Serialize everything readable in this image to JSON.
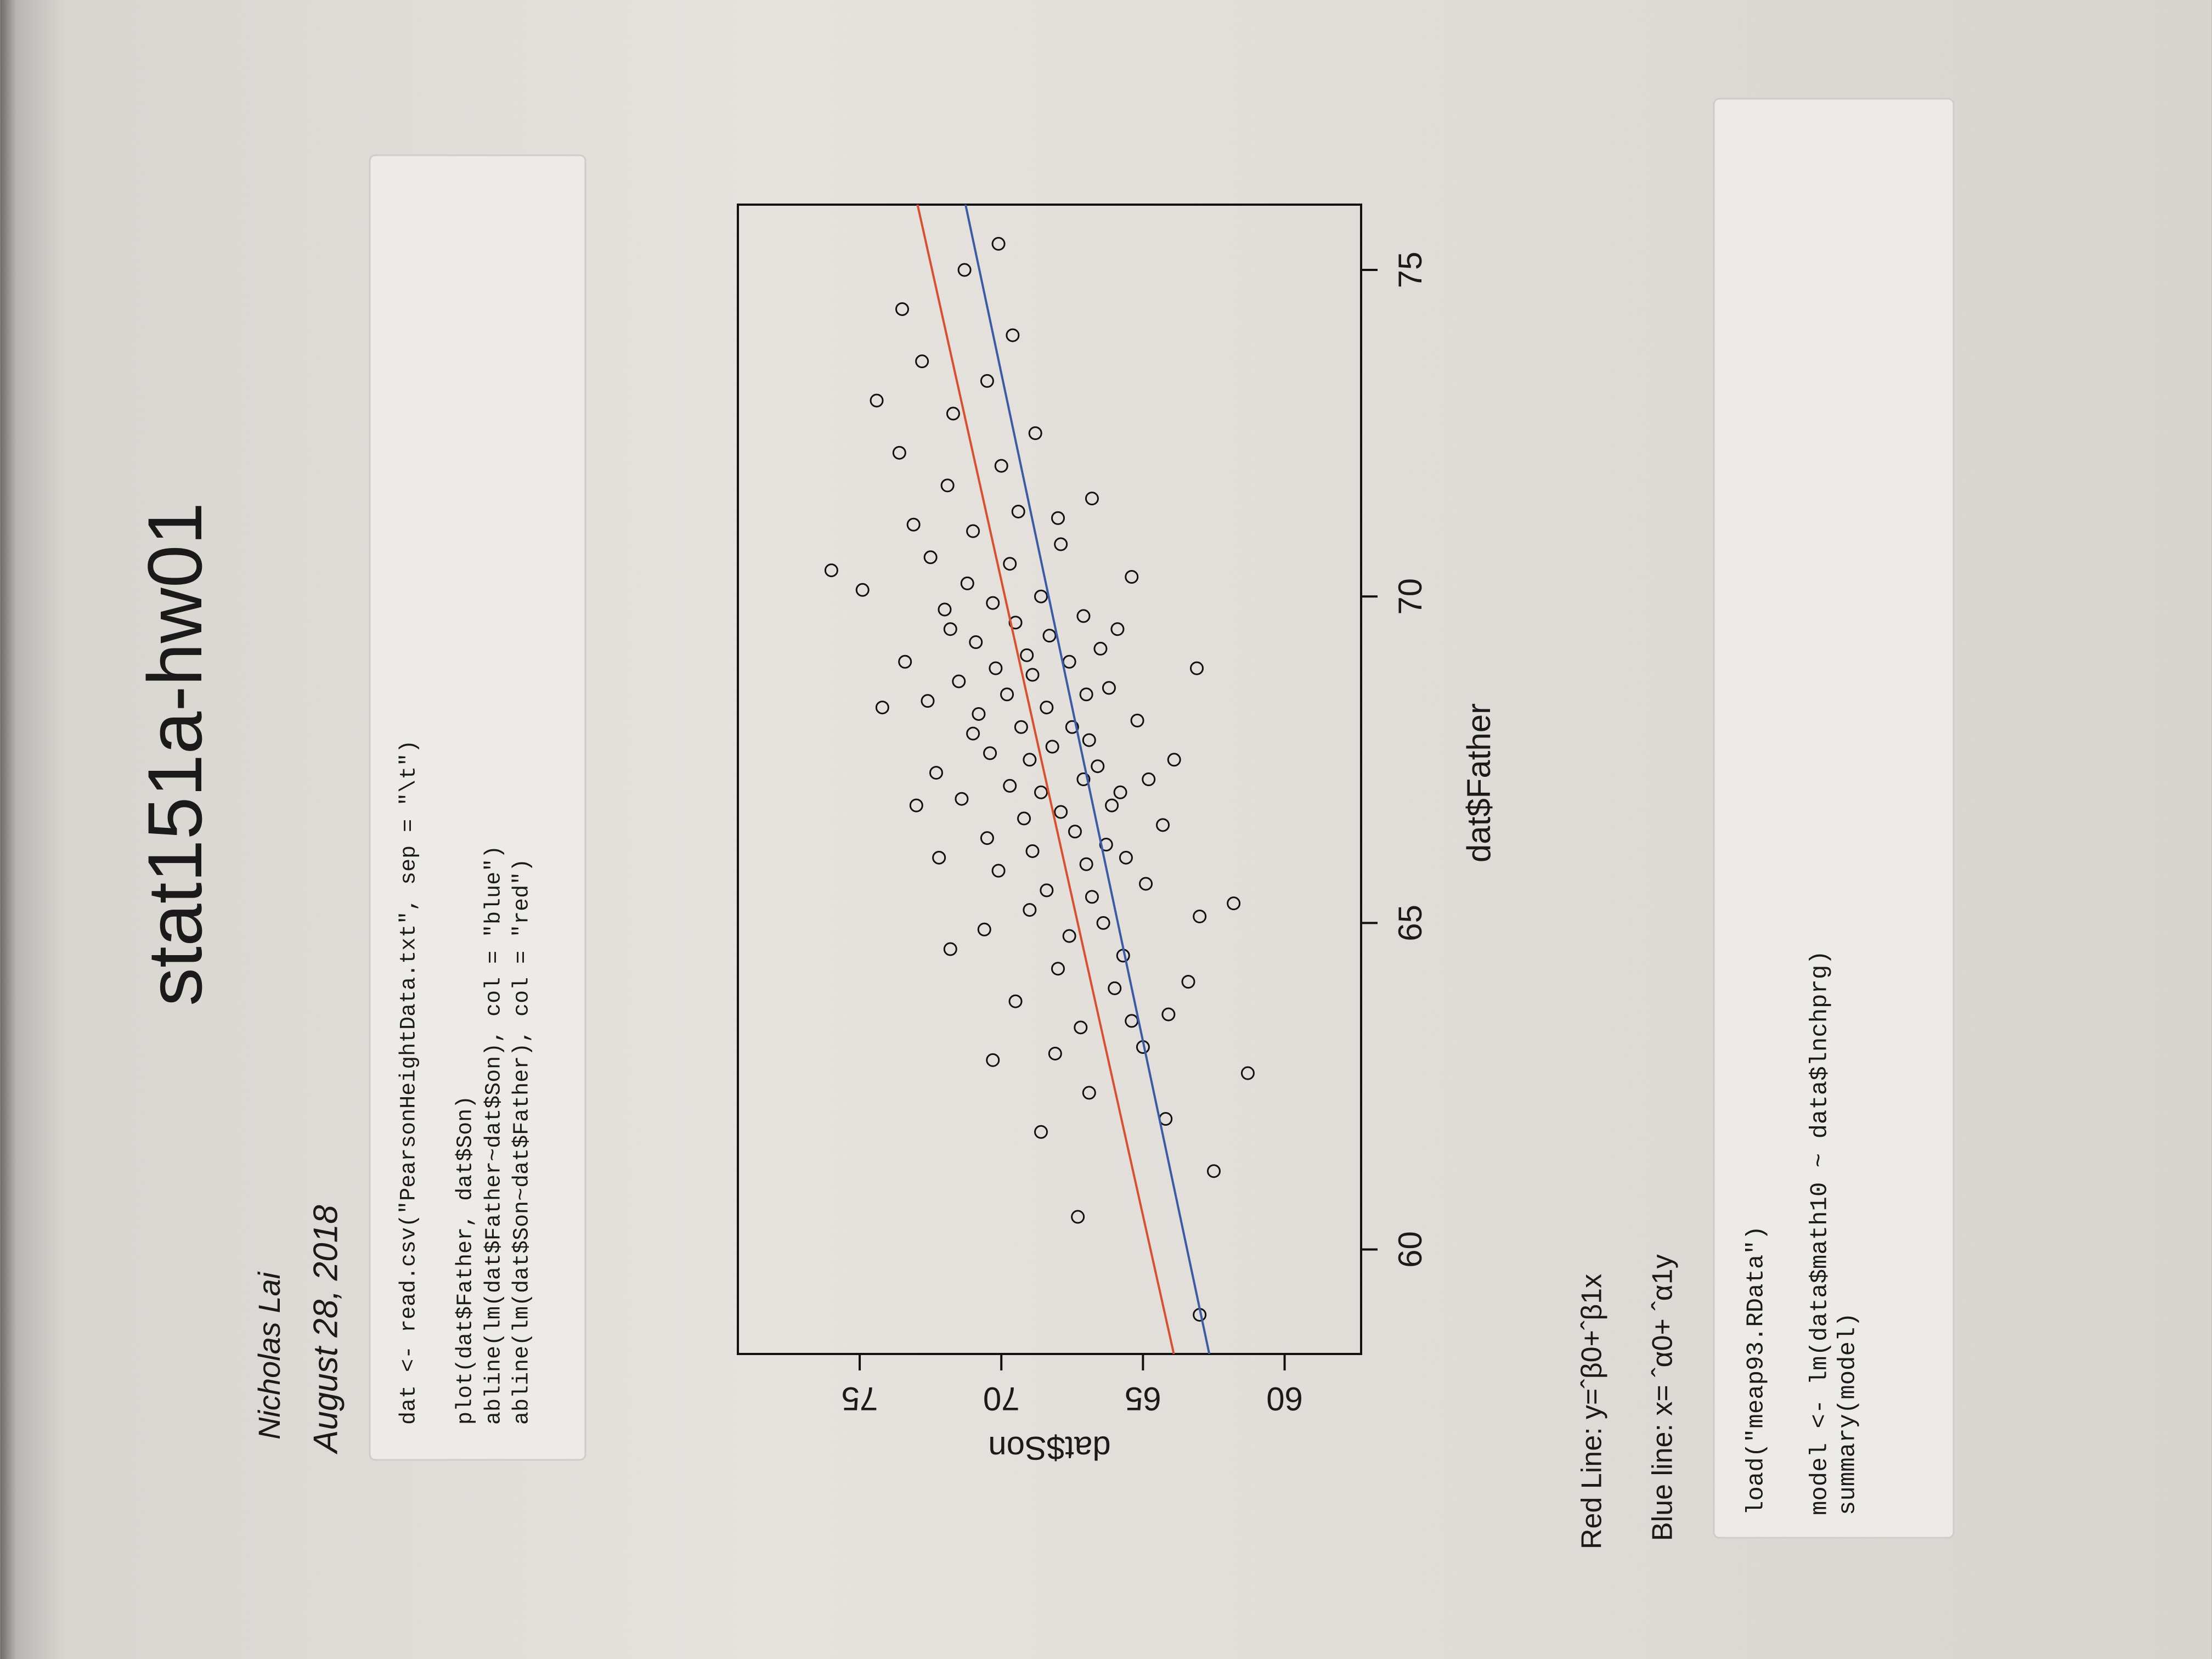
{
  "header": {
    "title": "stat151a-hw01",
    "author": "Nicholas Lai",
    "date": "August 28, 2018"
  },
  "code_1": {
    "lines": [
      "dat <- read.csv(\"PearsonHeightData.txt\", sep = \"\\t\")",
      "plot(dat$Father, dat$Son)",
      "abline(lm(dat$Father~dat$Son), col = \"blue\")",
      "abline(lm(dat$Son~dat$Father), col = \"red\")"
    ]
  },
  "chart_data": {
    "type": "scatter",
    "xlabel": "dat$Father",
    "ylabel": "dat$Son",
    "color": "#111111",
    "x": [
      59.0,
      60.5,
      61.2,
      61.8,
      62.0,
      62.4,
      62.7,
      63.0,
      63.1,
      63.4,
      63.6,
      63.8,
      64.0,
      64.1,
      64.3,
      64.5,
      64.6,
      64.8,
      65.0,
      65.1,
      65.2,
      65.4,
      65.5,
      65.6,
      65.8,
      65.9,
      66.0,
      66.1,
      66.2,
      66.3,
      66.4,
      66.5,
      66.6,
      66.7,
      66.8,
      66.9,
      67.0,
      67.0,
      67.1,
      67.2,
      67.3,
      67.4,
      67.5,
      67.5,
      67.6,
      67.7,
      67.8,
      67.9,
      68.0,
      68.0,
      68.1,
      68.2,
      68.3,
      68.4,
      68.5,
      68.5,
      68.6,
      68.7,
      68.8,
      68.9,
      69.0,
      69.0,
      69.1,
      69.2,
      69.3,
      69.4,
      69.5,
      69.6,
      69.7,
      69.8,
      69.9,
      70.0,
      70.1,
      70.2,
      70.3,
      70.5,
      70.6,
      70.8,
      71.0,
      71.1,
      71.3,
      71.5,
      71.7,
      72.0,
      72.2,
      72.5,
      72.8,
      73.0,
      73.3,
      73.6,
      74.0,
      74.4,
      75.0,
      75.4,
      63.5,
      64.9,
      66.0,
      67.2,
      68.3,
      69.5,
      70.4,
      71.2,
      65.3,
      66.8,
      68.9,
      62.9
    ],
    "values": [
      63.0,
      67.3,
      62.5,
      68.6,
      64.2,
      66.9,
      61.3,
      68.1,
      65.0,
      67.2,
      64.1,
      69.5,
      66.0,
      63.4,
      68.0,
      65.7,
      71.8,
      67.6,
      66.4,
      63.0,
      69.0,
      66.8,
      68.4,
      64.9,
      70.1,
      67.0,
      65.6,
      68.9,
      66.3,
      70.5,
      67.4,
      64.3,
      69.2,
      67.9,
      66.1,
      71.4,
      68.6,
      65.8,
      69.7,
      67.1,
      72.3,
      66.6,
      69.0,
      63.9,
      70.4,
      68.2,
      66.9,
      71.0,
      69.3,
      67.5,
      65.2,
      70.8,
      68.4,
      72.6,
      67.0,
      69.8,
      66.2,
      71.5,
      68.9,
      70.2,
      67.6,
      73.4,
      69.1,
      66.5,
      70.9,
      68.3,
      71.8,
      69.5,
      67.1,
      72.0,
      70.3,
      68.6,
      74.9,
      71.2,
      65.4,
      69.7,
      72.5,
      67.9,
      71.0,
      73.1,
      69.4,
      66.8,
      71.9,
      70.0,
      73.6,
      68.8,
      71.7,
      74.4,
      70.5,
      72.8,
      69.6,
      73.5,
      71.3,
      70.1,
      65.4,
      70.6,
      72.2,
      64.8,
      74.2,
      65.9,
      76.0,
      68.0,
      61.8,
      73.0,
      63.1,
      70.3
    ],
    "lines": [
      {
        "color": "#3b5ba5",
        "intercept": 34.107,
        "slope": 0.4889
      },
      {
        "color": "#d9502e",
        "intercept": 33.887,
        "slope": 0.5141
      }
    ],
    "xlim": [
      58.4,
      76.0
    ],
    "ylim": [
      57.3,
      79.3
    ],
    "xticks": [
      60,
      65,
      70,
      75
    ],
    "yticks": [
      60,
      65,
      70,
      75
    ]
  },
  "notes": [
    "Red Line: y=ˆβ0+ˆβ1x",
    "Blue line: x= ˆα0+ ˆα1y"
  ],
  "code_2": {
    "lines": [
      "load(\"meap93.RData\")",
      "model <- lm(data$math10 ~ data$lnchprg)",
      "summary(model)"
    ]
  }
}
